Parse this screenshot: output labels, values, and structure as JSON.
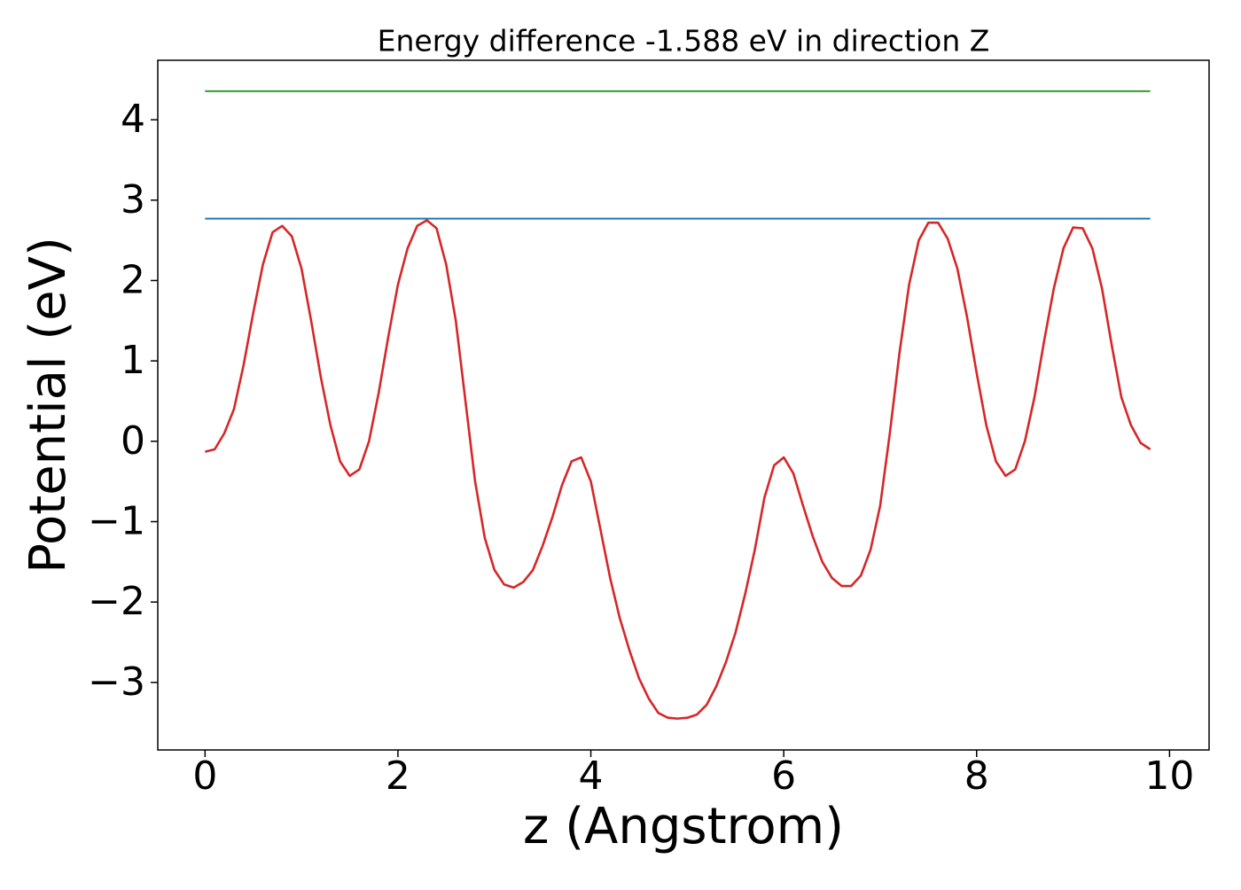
{
  "chart_data": {
    "type": "line",
    "title": "Energy difference -1.588 eV in direction Z",
    "xlabel": "z (Angstrom)",
    "ylabel": "Potential (eV)",
    "xlim": [
      -0.49,
      10.41
    ],
    "ylim": [
      -3.84,
      4.74
    ],
    "xticks": [
      0,
      2,
      4,
      6,
      8,
      10
    ],
    "yticks": [
      {
        "value": -3,
        "label": "−3"
      },
      {
        "value": -2,
        "label": "−2"
      },
      {
        "value": -1,
        "label": "−1"
      },
      0,
      1,
      2,
      3,
      4
    ],
    "grid": false,
    "series": [
      {
        "color": "#d62728",
        "x": [
          0,
          0.1,
          0.2,
          0.3,
          0.4,
          0.5,
          0.6,
          0.7,
          0.8,
          0.9,
          1.0,
          1.1,
          1.2,
          1.3,
          1.4,
          1.5,
          1.6,
          1.7,
          1.8,
          1.9,
          2.0,
          2.1,
          2.2,
          2.3,
          2.4,
          2.5,
          2.6,
          2.7,
          2.8,
          2.9,
          3.0,
          3.1,
          3.2,
          3.3,
          3.4,
          3.5,
          3.6,
          3.7,
          3.8,
          3.9,
          4.0,
          4.1,
          4.2,
          4.3,
          4.4,
          4.5,
          4.6,
          4.7,
          4.8,
          4.9,
          5.0,
          5.1,
          5.2,
          5.3,
          5.4,
          5.5,
          5.6,
          5.7,
          5.8,
          5.9,
          6.0,
          6.1,
          6.2,
          6.3,
          6.4,
          6.5,
          6.6,
          6.7,
          6.8,
          6.9,
          7.0,
          7.1,
          7.2,
          7.3,
          7.4,
          7.5,
          7.6,
          7.7,
          7.8,
          7.9,
          8.0,
          8.1,
          8.2,
          8.3,
          8.4,
          8.5,
          8.6,
          8.7,
          8.8,
          8.9,
          9.0,
          9.1,
          9.2,
          9.3,
          9.4,
          9.5,
          9.6,
          9.7,
          9.8
        ],
        "values": [
          -0.13,
          -0.1,
          0.1,
          0.4,
          0.95,
          1.6,
          2.2,
          2.6,
          2.68,
          2.55,
          2.15,
          1.5,
          0.8,
          0.2,
          -0.25,
          -0.43,
          -0.35,
          0.0,
          0.6,
          1.3,
          1.95,
          2.4,
          2.68,
          2.75,
          2.65,
          2.2,
          1.5,
          0.5,
          -0.5,
          -1.2,
          -1.6,
          -1.78,
          -1.82,
          -1.75,
          -1.6,
          -1.3,
          -0.95,
          -0.55,
          -0.25,
          -0.2,
          -0.5,
          -1.1,
          -1.7,
          -2.2,
          -2.6,
          -2.95,
          -3.2,
          -3.38,
          -3.44,
          -3.45,
          -3.44,
          -3.4,
          -3.28,
          -3.05,
          -2.75,
          -2.38,
          -1.9,
          -1.35,
          -0.7,
          -0.3,
          -0.2,
          -0.4,
          -0.8,
          -1.18,
          -1.5,
          -1.7,
          -1.8,
          -1.8,
          -1.67,
          -1.35,
          -0.8,
          0.1,
          1.1,
          1.95,
          2.5,
          2.72,
          2.72,
          2.52,
          2.15,
          1.55,
          0.85,
          0.2,
          -0.25,
          -0.43,
          -0.35,
          0.0,
          0.55,
          1.25,
          1.9,
          2.4,
          2.66,
          2.65,
          2.4,
          1.9,
          1.2,
          0.55,
          0.2,
          -0.02,
          -0.1
        ]
      },
      {
        "color": "#1f77b4",
        "x": [
          0,
          9.8
        ],
        "values": [
          2.77,
          2.77
        ]
      },
      {
        "color": "#2ca02c",
        "x": [
          0,
          9.8
        ],
        "values": [
          4.355,
          4.355
        ]
      }
    ]
  }
}
